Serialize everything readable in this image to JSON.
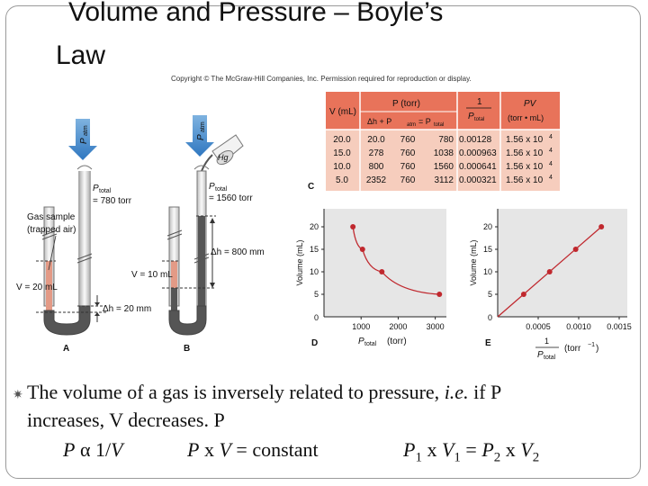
{
  "slide": {
    "title_line1": "Volume and Pressure – Boyle’s",
    "title_line2": "Law",
    "copyright": "Copyright © The McGraw-Hill Companies, Inc. Permission required for reproduction or display."
  },
  "apparatus": {
    "a_patm": "atm",
    "a_p": "P",
    "a_ptotal_label": "total",
    "a_ptotal_p": "P",
    "a_ptotal_value": "= 780 torr",
    "a_gas_label1": "Gas sample",
    "a_gas_label2": "(trapped air)",
    "a_volume": "V = 20 mL",
    "a_dh": "Δh = 20 mm",
    "a_letter": "A",
    "b_patm": "atm",
    "b_p": "P",
    "b_hg": "Hg",
    "b_ptotal_p": "P",
    "b_ptotal_label": "total",
    "b_ptotal_value": "= 1560 torr",
    "b_volume": "V = 10 mL",
    "b_dh": "Δh = 800 mm",
    "b_letter": "B"
  },
  "table": {
    "letter": "C",
    "header": {
      "v": "V (mL)",
      "p": "P (torr)",
      "p_sub": "Δh  +  P",
      "p_sub2": "atm",
      "p_sub3": "= P",
      "p_sub4": "total",
      "inv_num": "1",
      "inv_den": "P",
      "inv_den_sub": "total",
      "pv": "PV",
      "pv_units": "(torr • mL)"
    },
    "rows": [
      {
        "v": "20.0",
        "dh": "20.0",
        "patm": "760",
        "pt": "780",
        "inv": "0.00128",
        "pv": "1.56 x 10",
        "exp": "4"
      },
      {
        "v": "15.0",
        "dh": "278",
        "patm": "760",
        "pt": "1038",
        "inv": "0.000963",
        "pv": "1.56 x 10",
        "exp": "4"
      },
      {
        "v": "10.0",
        "dh": "800",
        "patm": "760",
        "pt": "1560",
        "inv": "0.000641",
        "pv": "1.56 x 10",
        "exp": "4"
      },
      {
        "v": "5.0",
        "dh": "2352",
        "patm": "760",
        "pt": "3112",
        "inv": "0.000321",
        "pv": "1.56 x 10",
        "exp": "4"
      }
    ],
    "colors": {
      "header": "#e8735a",
      "body": "#f6cdbd",
      "grid": "#ffffff"
    }
  },
  "chart_data": [
    {
      "type": "scatter",
      "letter": "D",
      "ylabel": "Volume (mL)",
      "xlabel_main": "P",
      "xlabel_sub": "total",
      "xlabel_unit": "(torr)",
      "xticks": [
        "1000",
        "2000",
        "3000"
      ],
      "yticks": [
        "5",
        "10",
        "15",
        "20"
      ],
      "origin_label": "0",
      "xlim": [
        0,
        3300
      ],
      "ylim": [
        0,
        24
      ],
      "points": [
        [
          780,
          20
        ],
        [
          1038,
          15
        ],
        [
          1560,
          10
        ],
        [
          3112,
          5
        ]
      ],
      "color": "#c0282e"
    },
    {
      "type": "line",
      "letter": "E",
      "ylabel": "Volume (mL)",
      "xlabel_num": "1",
      "xlabel_den": "P",
      "xlabel_den_sub": "total",
      "xlabel_unit": "(torr",
      "xlabel_unit_exp": "−1",
      "xlabel_unit_close": ")",
      "xticks": [
        "0.0005",
        "0.0010",
        "0.0015"
      ],
      "yticks": [
        "5",
        "10",
        "15",
        "20"
      ],
      "origin_label": "0",
      "xlim": [
        0,
        0.0016
      ],
      "ylim": [
        0,
        24
      ],
      "points": [
        [
          0.000321,
          5
        ],
        [
          0.000641,
          10
        ],
        [
          0.000963,
          15
        ],
        [
          0.00128,
          20
        ]
      ],
      "color": "#c0282e"
    }
  ],
  "text": {
    "line1_a": "The volume of a gas is inversely related to pressure, ",
    "line1_ie": "i.e.",
    "line1_b": " if P",
    "line2": "increases, V decreases. P",
    "line3_p": "P",
    "line3_alpha": "α",
    "line3_inv": " 1/",
    "line3_v": "V",
    "line3_p2": "P",
    "line3_x": " x ",
    "line3_v2": "V",
    "line3_const": " = constant",
    "line3_p1": "P",
    "line3_s1": "1",
    "line3_x1": " x ",
    "line3_v1": "V",
    "line3_s1b": "1",
    "line3_eq": " = ",
    "line3_pp2": "P",
    "line3_s2": "2",
    "line3_x2": " x ",
    "line3_vv2": "V",
    "line3_s2b": "2"
  }
}
